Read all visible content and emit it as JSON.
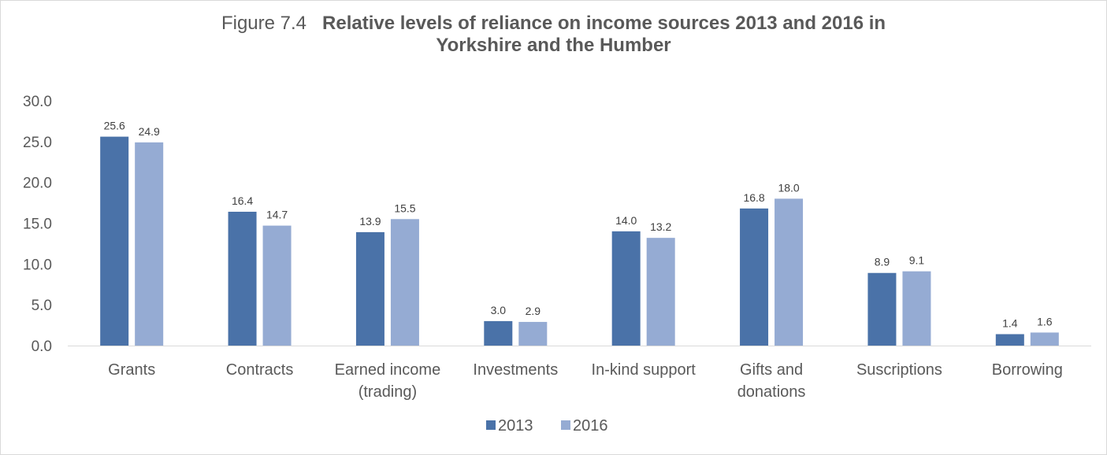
{
  "chart_data": {
    "type": "bar",
    "title_prefix": "Figure 7.4",
    "title_line1": "Relative levels of reliance on income sources 2013 and 2016 in",
    "title_line2": "Yorkshire and the Humber",
    "categories": [
      [
        "Grants"
      ],
      [
        "Contracts"
      ],
      [
        "Earned income",
        "(trading)"
      ],
      [
        "Investments"
      ],
      [
        "In-kind support"
      ],
      [
        "Gifts and",
        "donations"
      ],
      [
        "Suscriptions"
      ],
      [
        "Borrowing"
      ]
    ],
    "series": [
      {
        "name": "2013",
        "values": [
          25.6,
          16.4,
          13.9,
          3.0,
          14.0,
          16.8,
          8.9,
          1.4
        ]
      },
      {
        "name": "2016",
        "values": [
          24.9,
          14.7,
          15.5,
          2.9,
          13.2,
          18.0,
          9.1,
          1.6
        ]
      }
    ],
    "data_labels": [
      [
        "25.6",
        "16.4",
        "13.9",
        "3.0",
        "14.0",
        "16.8",
        "8.9",
        "1.4"
      ],
      [
        "24.9",
        "14.7",
        "15.5",
        "2.9",
        "13.2",
        "18.0",
        "9.1",
        "1.6"
      ]
    ],
    "y_ticks": [
      "0.0",
      "5.0",
      "10.0",
      "15.0",
      "20.0",
      "25.0",
      "30.0"
    ],
    "ylim": [
      0,
      30
    ],
    "grid": false,
    "legend_position": "bottom-center",
    "colors": {
      "series_2013": "#4a72a8",
      "series_2016": "#95abd3",
      "axis": "#d9d9d9",
      "text": "#595959"
    }
  }
}
